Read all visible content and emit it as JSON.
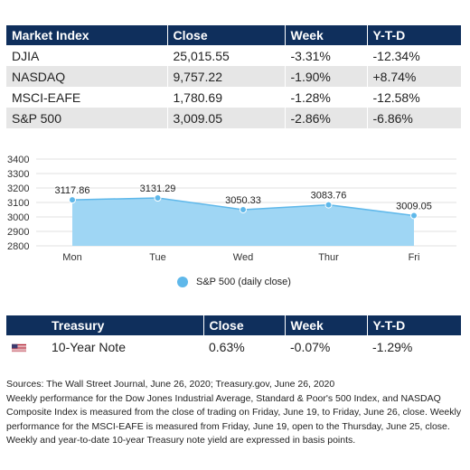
{
  "market_table": {
    "headers": [
      "Market Index",
      "Close",
      "Week",
      "Y-T-D"
    ],
    "rows": [
      [
        "DJIA",
        "25,015.55",
        "-3.31%",
        "-12.34%"
      ],
      [
        "NASDAQ",
        "9,757.22",
        "-1.90%",
        "+8.74%"
      ],
      [
        "MSCI-EAFE",
        "1,780.69",
        "-1.28%",
        "-12.58%"
      ],
      [
        "S&P 500",
        "3,009.05",
        "-2.86%",
        "-6.86%"
      ]
    ]
  },
  "chart_data": {
    "type": "area",
    "categories": [
      "Mon",
      "Tue",
      "Wed",
      "Thur",
      "Fri"
    ],
    "series": [
      {
        "name": "S&P 500 (daily close)",
        "values": [
          3117.86,
          3131.29,
          3050.33,
          3083.76,
          3009.05
        ]
      }
    ],
    "data_labels": [
      "3117.86",
      "3131.29",
      "3050.33",
      "3083.76",
      "3009.05"
    ],
    "yticks": [
      "3400",
      "3300",
      "3200",
      "3100",
      "3000",
      "2900",
      "2800"
    ],
    "ylim": [
      2800,
      3400
    ],
    "grid": "horizontal",
    "legend": "bottom-center",
    "colors": {
      "fill": "#9fd6f4",
      "line": "#5fb8ea",
      "marker": "#5fb8ea",
      "grid": "#e2e2e2"
    }
  },
  "treasury_table": {
    "headers": [
      "Treasury",
      "Close",
      "Week",
      "Y-T-D"
    ],
    "row": [
      "10-Year Note",
      "0.63%",
      "-0.07%",
      "-1.29%"
    ],
    "flag_icon": "us-flag-icon"
  },
  "notes": {
    "sources": "Sources: The Wall Street Journal, June 26, 2020; Treasury.gov, June 26, 2020",
    "body": "Weekly performance for the Dow Jones Industrial Average, Standard & Poor's 500 Index, and NASDAQ Composite Index is measured from the close of trading on Friday, June 19, to Friday, June 26, close. Weekly performance for the MSCI-EAFE is measured from Friday, June 19, open to the Thursday, June 25, close. Weekly and year-to-date 10-year Treasury note yield are expressed in basis points."
  },
  "colors": {
    "header_bg": "#0f2f5c",
    "header_text": "#ffffff",
    "row_shade": "#e6e6e6"
  }
}
